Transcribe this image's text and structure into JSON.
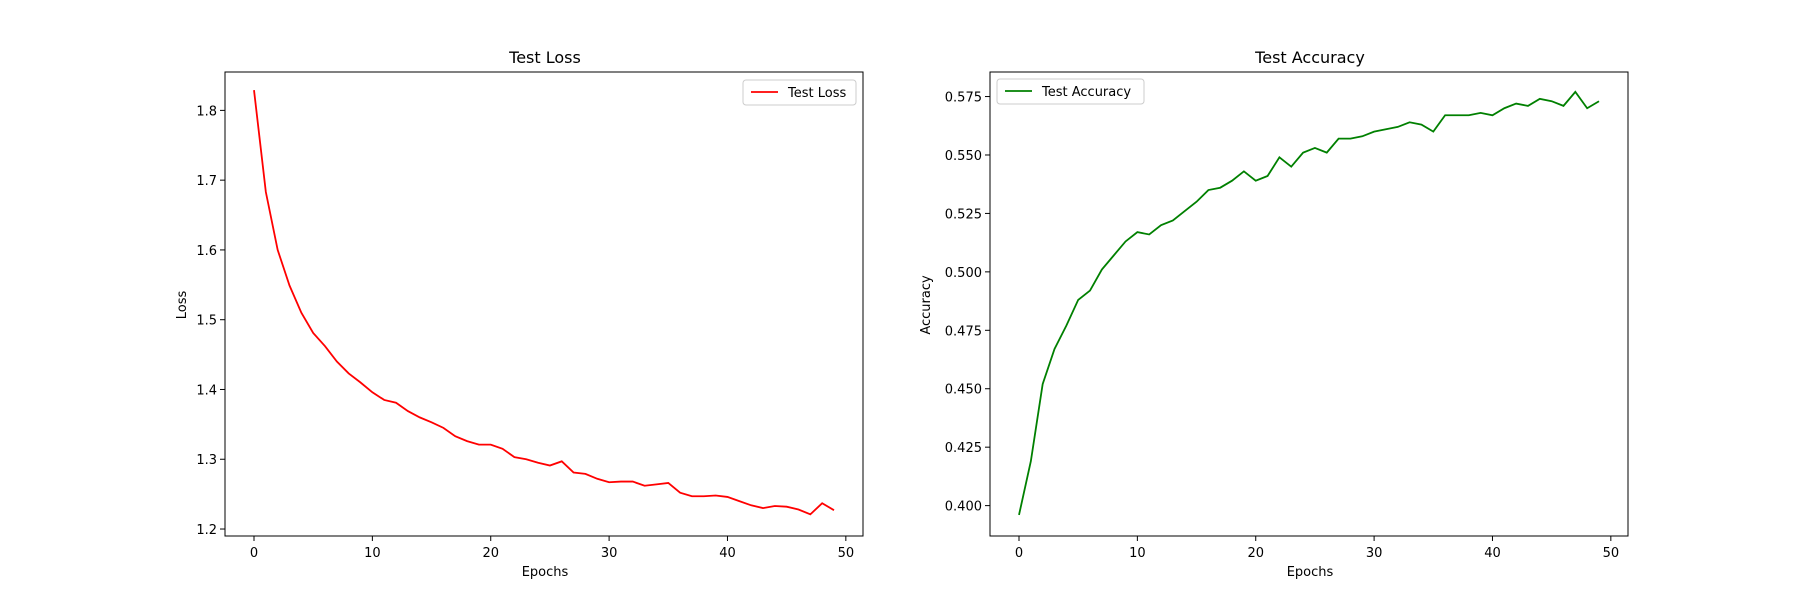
{
  "chart_data": [
    {
      "type": "line",
      "title": "Test Loss",
      "xlabel": "Epochs",
      "ylabel": "Loss",
      "xlim": [
        -2.45,
        51.45
      ],
      "ylim": [
        1.19,
        1.855
      ],
      "xticks": [
        0,
        10,
        20,
        30,
        40,
        50
      ],
      "yticks": [
        1.2,
        1.3,
        1.4,
        1.5,
        1.6,
        1.7,
        1.8
      ],
      "ytick_labels": [
        "1.2",
        "1.3",
        "1.4",
        "1.5",
        "1.6",
        "1.7",
        "1.8"
      ],
      "grid": false,
      "legend_position": "top-right",
      "series": [
        {
          "name": "Test Loss",
          "color": "#ff0000",
          "x": [
            0,
            1,
            2,
            3,
            4,
            5,
            6,
            7,
            8,
            9,
            10,
            11,
            12,
            13,
            14,
            15,
            16,
            17,
            18,
            19,
            20,
            21,
            22,
            23,
            24,
            25,
            26,
            27,
            28,
            29,
            30,
            31,
            32,
            33,
            34,
            35,
            36,
            37,
            38,
            39,
            40,
            41,
            42,
            43,
            44,
            45,
            46,
            47,
            48,
            49
          ],
          "values": [
            1.829,
            1.683,
            1.6,
            1.549,
            1.51,
            1.481,
            1.462,
            1.44,
            1.423,
            1.41,
            1.396,
            1.385,
            1.381,
            1.369,
            1.36,
            1.353,
            1.345,
            1.333,
            1.326,
            1.321,
            1.321,
            1.315,
            1.303,
            1.3,
            1.295,
            1.291,
            1.297,
            1.281,
            1.279,
            1.272,
            1.267,
            1.268,
            1.268,
            1.262,
            1.264,
            1.266,
            1.252,
            1.247,
            1.247,
            1.248,
            1.246,
            1.24,
            1.234,
            1.23,
            1.233,
            1.232,
            1.228,
            1.221,
            1.237,
            1.227
          ]
        }
      ]
    },
    {
      "type": "line",
      "title": "Test Accuracy",
      "xlabel": "Epochs",
      "ylabel": "Accuracy",
      "xlim": [
        -2.45,
        51.45
      ],
      "ylim": [
        0.387,
        0.5855
      ],
      "xticks": [
        0,
        10,
        20,
        30,
        40,
        50
      ],
      "yticks": [
        0.4,
        0.425,
        0.45,
        0.475,
        0.5,
        0.525,
        0.55,
        0.575
      ],
      "ytick_labels": [
        "0.400",
        "0.425",
        "0.450",
        "0.475",
        "0.500",
        "0.525",
        "0.550",
        "0.575"
      ],
      "grid": false,
      "legend_position": "top-left",
      "series": [
        {
          "name": "Test Accuracy",
          "color": "#008000",
          "x": [
            0,
            1,
            2,
            3,
            4,
            5,
            6,
            7,
            8,
            9,
            10,
            11,
            12,
            13,
            14,
            15,
            16,
            17,
            18,
            19,
            20,
            21,
            22,
            23,
            24,
            25,
            26,
            27,
            28,
            29,
            30,
            31,
            32,
            33,
            34,
            35,
            36,
            37,
            38,
            39,
            40,
            41,
            42,
            43,
            44,
            45,
            46,
            47,
            48,
            49
          ],
          "values": [
            0.396,
            0.419,
            0.452,
            0.467,
            0.477,
            0.488,
            0.492,
            0.501,
            0.507,
            0.513,
            0.517,
            0.516,
            0.52,
            0.522,
            0.526,
            0.53,
            0.535,
            0.536,
            0.539,
            0.543,
            0.539,
            0.541,
            0.549,
            0.545,
            0.551,
            0.553,
            0.551,
            0.557,
            0.557,
            0.558,
            0.56,
            0.561,
            0.562,
            0.564,
            0.563,
            0.56,
            0.567,
            0.567,
            0.567,
            0.568,
            0.567,
            0.57,
            0.572,
            0.571,
            0.574,
            0.573,
            0.571,
            0.577,
            0.57,
            0.573
          ]
        }
      ]
    }
  ]
}
